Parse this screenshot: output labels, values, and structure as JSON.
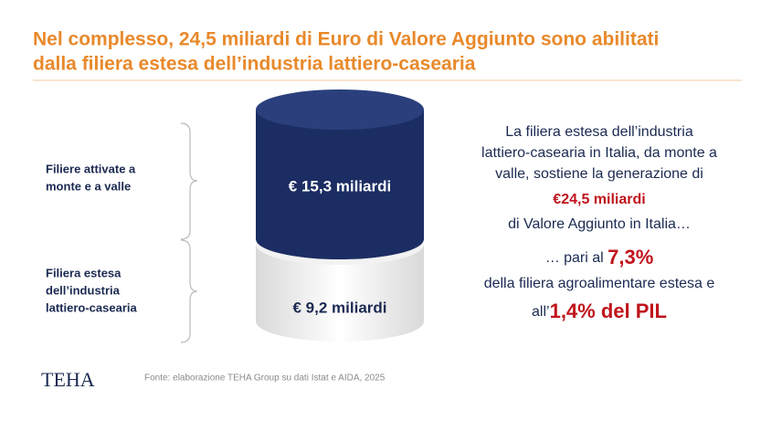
{
  "header": {
    "title_lines": [
      "Nel complesso, 24,5 miliardi di Euro di Valore Aggiunto sono abilitati",
      "dalla filiera estesa dell’industria lattiero-casearia"
    ]
  },
  "diagram": {
    "labels": [
      [
        "Filiere attivate a",
        "monte e a valle"
      ],
      [
        "Filiera estesa",
        "dell’industria",
        "lattiero-casearia"
      ]
    ],
    "segments": [
      "€ 15,3 miliardi",
      "€ 9,2 miliardi"
    ]
  },
  "text": {
    "intro_lines": [
      "La filiera estesa dell’industria",
      "lattiero-casearia in Italia, da monte a",
      "valle, sostiene la generazione di"
    ],
    "highlight": "€24,5 miliardi",
    "after": "di Valore Aggiunto in Italia…",
    "share_prefix": "… pari al ",
    "share_value": "7,3%",
    "share_after": "della filiera agroalimentare estesa e",
    "pil_prefix": "all’",
    "pil_value": "1,4% del PIL"
  },
  "footer": {
    "logo": "TEHA",
    "source": "Fonte: elaborazione TEHA Group su dati Istat e AIDA, 2025"
  }
}
